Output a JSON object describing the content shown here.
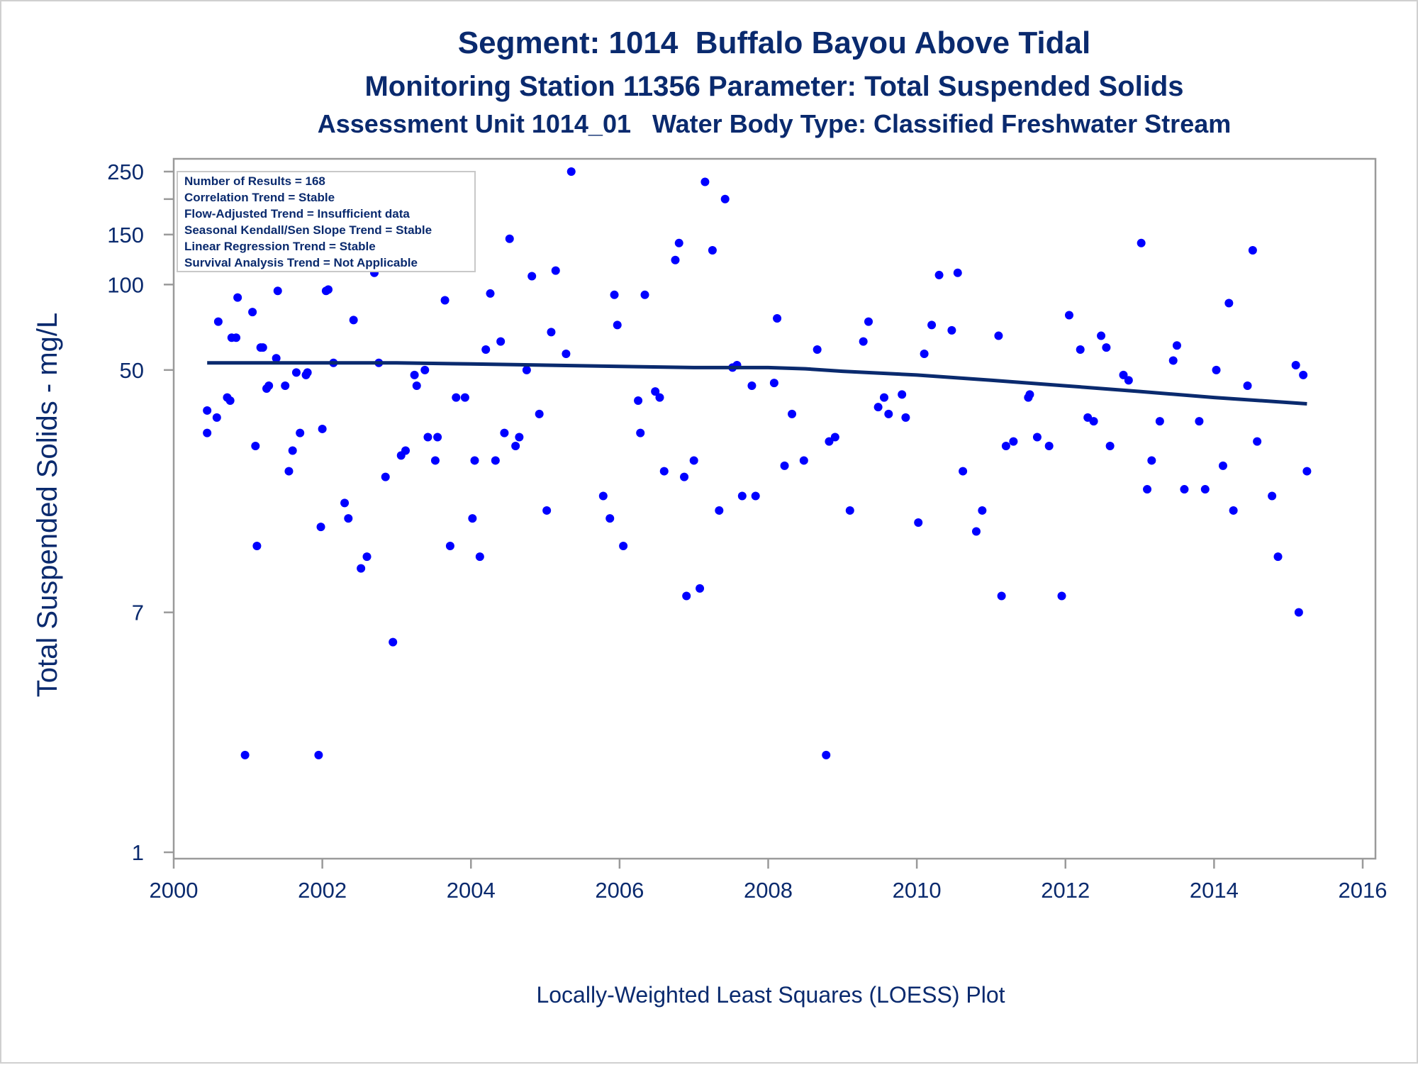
{
  "titles": {
    "line1": "Segment: 1014  Buffalo Bayou Above Tidal",
    "line2": "Monitoring Station 11356 Parameter: Total Suspended Solids",
    "line3": "Assessment Unit 1014_01   Water Body Type: Classified Freshwater Stream"
  },
  "footnote": "Locally-Weighted Least Squares (LOESS) Plot",
  "stats_box": [
    "Number of Results = 168",
    "Correlation Trend = Stable",
    "Flow-Adjusted Trend = Insufficient data",
    "Seasonal Kendall/Sen Slope Trend = Stable",
    "Linear Regression Trend = Stable",
    "Survival Analysis Trend = Not Applicable"
  ],
  "colors": {
    "text": "#0a2a6e",
    "points": "#0000ff",
    "loess": "#0a2a6e",
    "axis": "#9a9a9a"
  },
  "chart_data": {
    "type": "scatter",
    "ylabel": "Total Suspended Solids - mg/L",
    "xlabel": "",
    "yscale": "log",
    "xlim": [
      2000,
      2016
    ],
    "ylim": [
      1,
      250
    ],
    "xticks": [
      2000,
      2002,
      2004,
      2006,
      2008,
      2010,
      2012,
      2014,
      2016
    ],
    "yticks": [
      1,
      7,
      50,
      100,
      150,
      250
    ],
    "points": [
      [
        2000.45,
        36
      ],
      [
        2000.45,
        30
      ],
      [
        2000.58,
        34
      ],
      [
        2000.6,
        74
      ],
      [
        2000.7,
        115
      ],
      [
        2000.72,
        40
      ],
      [
        2000.76,
        39
      ],
      [
        2000.78,
        65
      ],
      [
        2000.84,
        65
      ],
      [
        2000.86,
        90
      ],
      [
        2000.96,
        2.2
      ],
      [
        2000.98,
        185
      ],
      [
        2001.04,
        153
      ],
      [
        2001.06,
        80
      ],
      [
        2001.1,
        27
      ],
      [
        2001.12,
        12
      ],
      [
        2001.17,
        60
      ],
      [
        2001.2,
        60
      ],
      [
        2001.25,
        43
      ],
      [
        2001.28,
        44
      ],
      [
        2001.38,
        55
      ],
      [
        2001.4,
        95
      ],
      [
        2001.5,
        44
      ],
      [
        2001.55,
        22
      ],
      [
        2001.6,
        26
      ],
      [
        2001.65,
        49
      ],
      [
        2001.7,
        30
      ],
      [
        2001.78,
        48
      ],
      [
        2001.8,
        49
      ],
      [
        2001.9,
        130
      ],
      [
        2001.95,
        2.2
      ],
      [
        2001.98,
        14
      ],
      [
        2002.0,
        31
      ],
      [
        2002.05,
        95
      ],
      [
        2002.08,
        96
      ],
      [
        2002.15,
        53
      ],
      [
        2002.3,
        17
      ],
      [
        2002.35,
        15
      ],
      [
        2002.42,
        75
      ],
      [
        2002.52,
        10
      ],
      [
        2002.6,
        11
      ],
      [
        2002.7,
        110
      ],
      [
        2002.76,
        53
      ],
      [
        2002.85,
        21
      ],
      [
        2002.95,
        5.5
      ],
      [
        2003.06,
        25
      ],
      [
        2003.12,
        26
      ],
      [
        2003.24,
        48
      ],
      [
        2003.27,
        44
      ],
      [
        2003.38,
        50
      ],
      [
        2003.42,
        29
      ],
      [
        2003.52,
        24
      ],
      [
        2003.55,
        29
      ],
      [
        2003.65,
        88
      ],
      [
        2003.72,
        12
      ],
      [
        2003.8,
        40
      ],
      [
        2003.92,
        40
      ],
      [
        2004.02,
        15
      ],
      [
        2004.05,
        24
      ],
      [
        2004.12,
        11
      ],
      [
        2004.2,
        59
      ],
      [
        2004.26,
        93
      ],
      [
        2004.33,
        24
      ],
      [
        2004.4,
        63
      ],
      [
        2004.45,
        30
      ],
      [
        2004.52,
        145
      ],
      [
        2004.6,
        27
      ],
      [
        2004.65,
        29
      ],
      [
        2004.75,
        50
      ],
      [
        2004.82,
        107
      ],
      [
        2004.92,
        35
      ],
      [
        2005.02,
        16
      ],
      [
        2005.08,
        68
      ],
      [
        2005.14,
        112
      ],
      [
        2005.28,
        57
      ],
      [
        2005.35,
        250
      ],
      [
        2005.78,
        18
      ],
      [
        2005.87,
        15
      ],
      [
        2005.93,
        92
      ],
      [
        2005.97,
        72
      ],
      [
        2006.05,
        12
      ],
      [
        2006.25,
        39
      ],
      [
        2006.28,
        30
      ],
      [
        2006.34,
        92
      ],
      [
        2006.48,
        42
      ],
      [
        2006.54,
        40
      ],
      [
        2006.6,
        22
      ],
      [
        2006.75,
        122
      ],
      [
        2006.8,
        140
      ],
      [
        2006.87,
        21
      ],
      [
        2006.9,
        8
      ],
      [
        2007.0,
        24
      ],
      [
        2007.08,
        8.5
      ],
      [
        2007.15,
        230
      ],
      [
        2007.25,
        132
      ],
      [
        2007.34,
        16
      ],
      [
        2007.42,
        200
      ],
      [
        2007.52,
        51
      ],
      [
        2007.58,
        52
      ],
      [
        2007.65,
        18
      ],
      [
        2007.78,
        44
      ],
      [
        2007.83,
        18
      ],
      [
        2008.08,
        45
      ],
      [
        2008.12,
        76
      ],
      [
        2008.22,
        23
      ],
      [
        2008.32,
        35
      ],
      [
        2008.48,
        24
      ],
      [
        2008.66,
        59
      ],
      [
        2008.78,
        2.2
      ],
      [
        2008.82,
        28
      ],
      [
        2008.9,
        29
      ],
      [
        2009.1,
        16
      ],
      [
        2009.28,
        63
      ],
      [
        2009.35,
        74
      ],
      [
        2009.48,
        37
      ],
      [
        2009.56,
        40
      ],
      [
        2009.62,
        35
      ],
      [
        2009.8,
        41
      ],
      [
        2009.85,
        34
      ],
      [
        2010.02,
        14.5
      ],
      [
        2010.1,
        57
      ],
      [
        2010.2,
        72
      ],
      [
        2010.3,
        108
      ],
      [
        2010.47,
        69
      ],
      [
        2010.55,
        110
      ],
      [
        2010.62,
        22
      ],
      [
        2010.8,
        13.5
      ],
      [
        2010.88,
        16
      ],
      [
        2011.1,
        66
      ],
      [
        2011.14,
        8
      ],
      [
        2011.2,
        27
      ],
      [
        2011.3,
        28
      ],
      [
        2011.5,
        40
      ],
      [
        2011.52,
        41
      ],
      [
        2011.62,
        29
      ],
      [
        2011.78,
        27
      ],
      [
        2011.95,
        8
      ],
      [
        2012.05,
        78
      ],
      [
        2012.2,
        59
      ],
      [
        2012.3,
        34
      ],
      [
        2012.38,
        33
      ],
      [
        2012.48,
        66
      ],
      [
        2012.55,
        60
      ],
      [
        2012.6,
        27
      ],
      [
        2012.78,
        48
      ],
      [
        2012.85,
        46
      ],
      [
        2013.02,
        140
      ],
      [
        2013.1,
        19
      ],
      [
        2013.16,
        24
      ],
      [
        2013.27,
        33
      ],
      [
        2013.45,
        54
      ],
      [
        2013.5,
        61
      ],
      [
        2013.6,
        19
      ],
      [
        2013.8,
        33
      ],
      [
        2013.88,
        19
      ],
      [
        2014.03,
        50
      ],
      [
        2014.12,
        23
      ],
      [
        2014.2,
        86
      ],
      [
        2014.26,
        16
      ],
      [
        2014.45,
        44
      ],
      [
        2014.52,
        132
      ],
      [
        2014.58,
        28
      ],
      [
        2014.78,
        18
      ],
      [
        2014.86,
        11
      ],
      [
        2015.1,
        52
      ],
      [
        2015.14,
        7
      ],
      [
        2015.2,
        48
      ],
      [
        2015.25,
        22
      ]
    ],
    "series": [
      {
        "name": "",
        "type": "line",
        "x": [
          2000.45,
          2002.0,
          2003.0,
          2004.0,
          2005.0,
          2006.0,
          2007.0,
          2008.0,
          2008.5,
          2009.0,
          2010.0,
          2011.0,
          2012.0,
          2013.0,
          2014.0,
          2015.25
        ],
        "y": [
          53,
          53,
          53,
          52.5,
          52,
          51.5,
          51,
          51,
          50.5,
          49.5,
          48,
          46,
          44,
          42,
          40,
          38
        ]
      }
    ]
  }
}
